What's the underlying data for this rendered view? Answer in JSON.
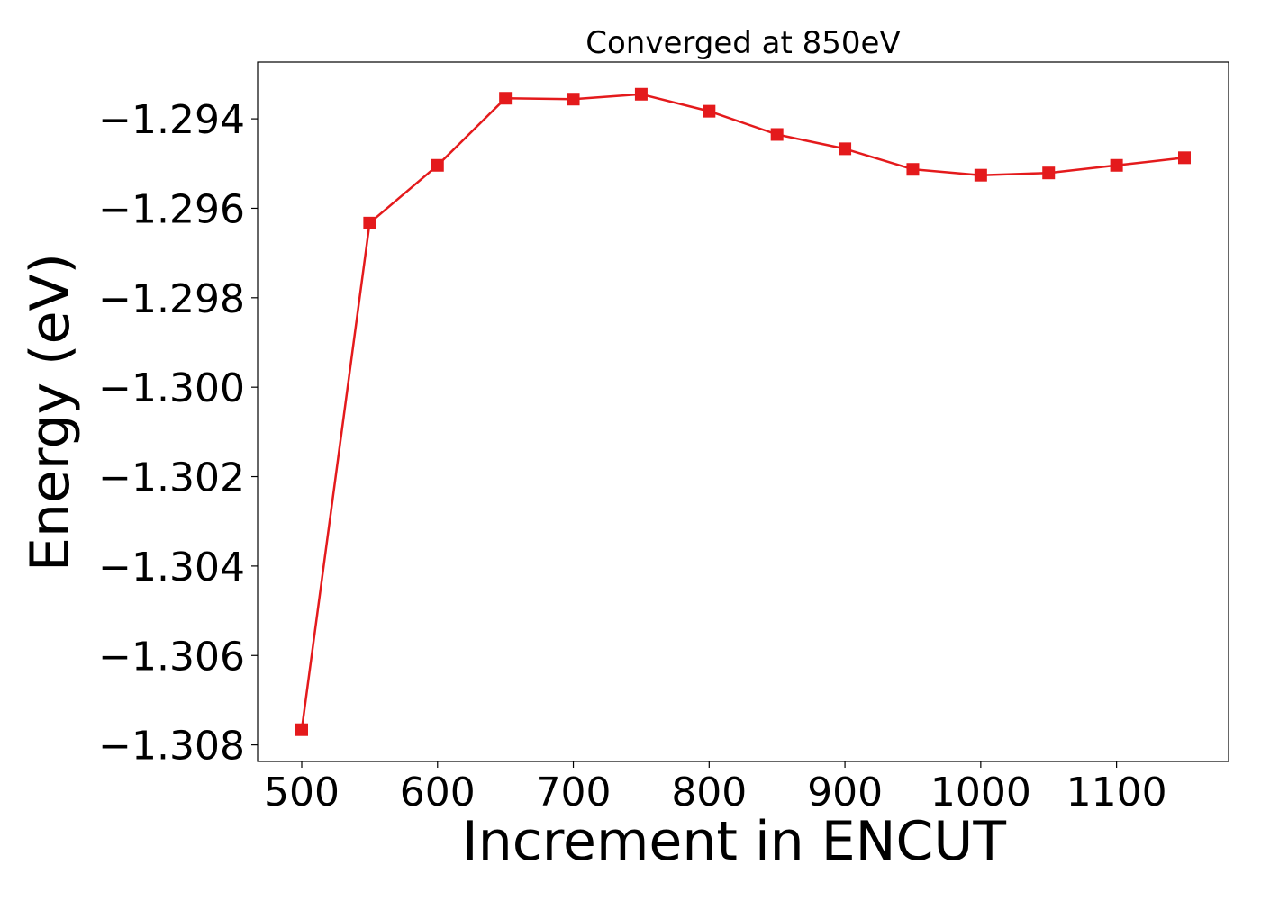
{
  "chart_data": {
    "type": "line",
    "title": "Converged at 850eV",
    "xlabel": "Increment in ENCUT",
    "ylabel": "Energy (eV)",
    "x": [
      500,
      550,
      600,
      650,
      700,
      750,
      800,
      850,
      900,
      950,
      1000,
      1050,
      1100,
      1150
    ],
    "series": [
      {
        "values": [
          -1.30766,
          -1.29633,
          -1.29504,
          -1.29354,
          -1.29356,
          -1.29345,
          -1.29383,
          -1.29435,
          -1.29467,
          -1.29513,
          -1.29526,
          -1.29521,
          -1.29504,
          -1.29487
        ],
        "color": "#e41a1c",
        "marker": "square"
      }
    ],
    "xlim": [
      467.5,
      1182.5
    ],
    "ylim": [
      -1.30837,
      -1.29273
    ],
    "xticks": [
      500,
      600,
      700,
      800,
      900,
      1000,
      1100
    ],
    "xtick_labels": [
      "500",
      "600",
      "700",
      "800",
      "900",
      "1000",
      "1100"
    ],
    "yticks": [
      -1.294,
      -1.296,
      -1.298,
      -1.3,
      -1.302,
      -1.304,
      -1.306,
      -1.308
    ],
    "ytick_labels": [
      "−1.294",
      "−1.296",
      "−1.298",
      "−1.300",
      "−1.302",
      "−1.304",
      "−1.306",
      "−1.308"
    ],
    "grid": false,
    "legend": "none"
  }
}
